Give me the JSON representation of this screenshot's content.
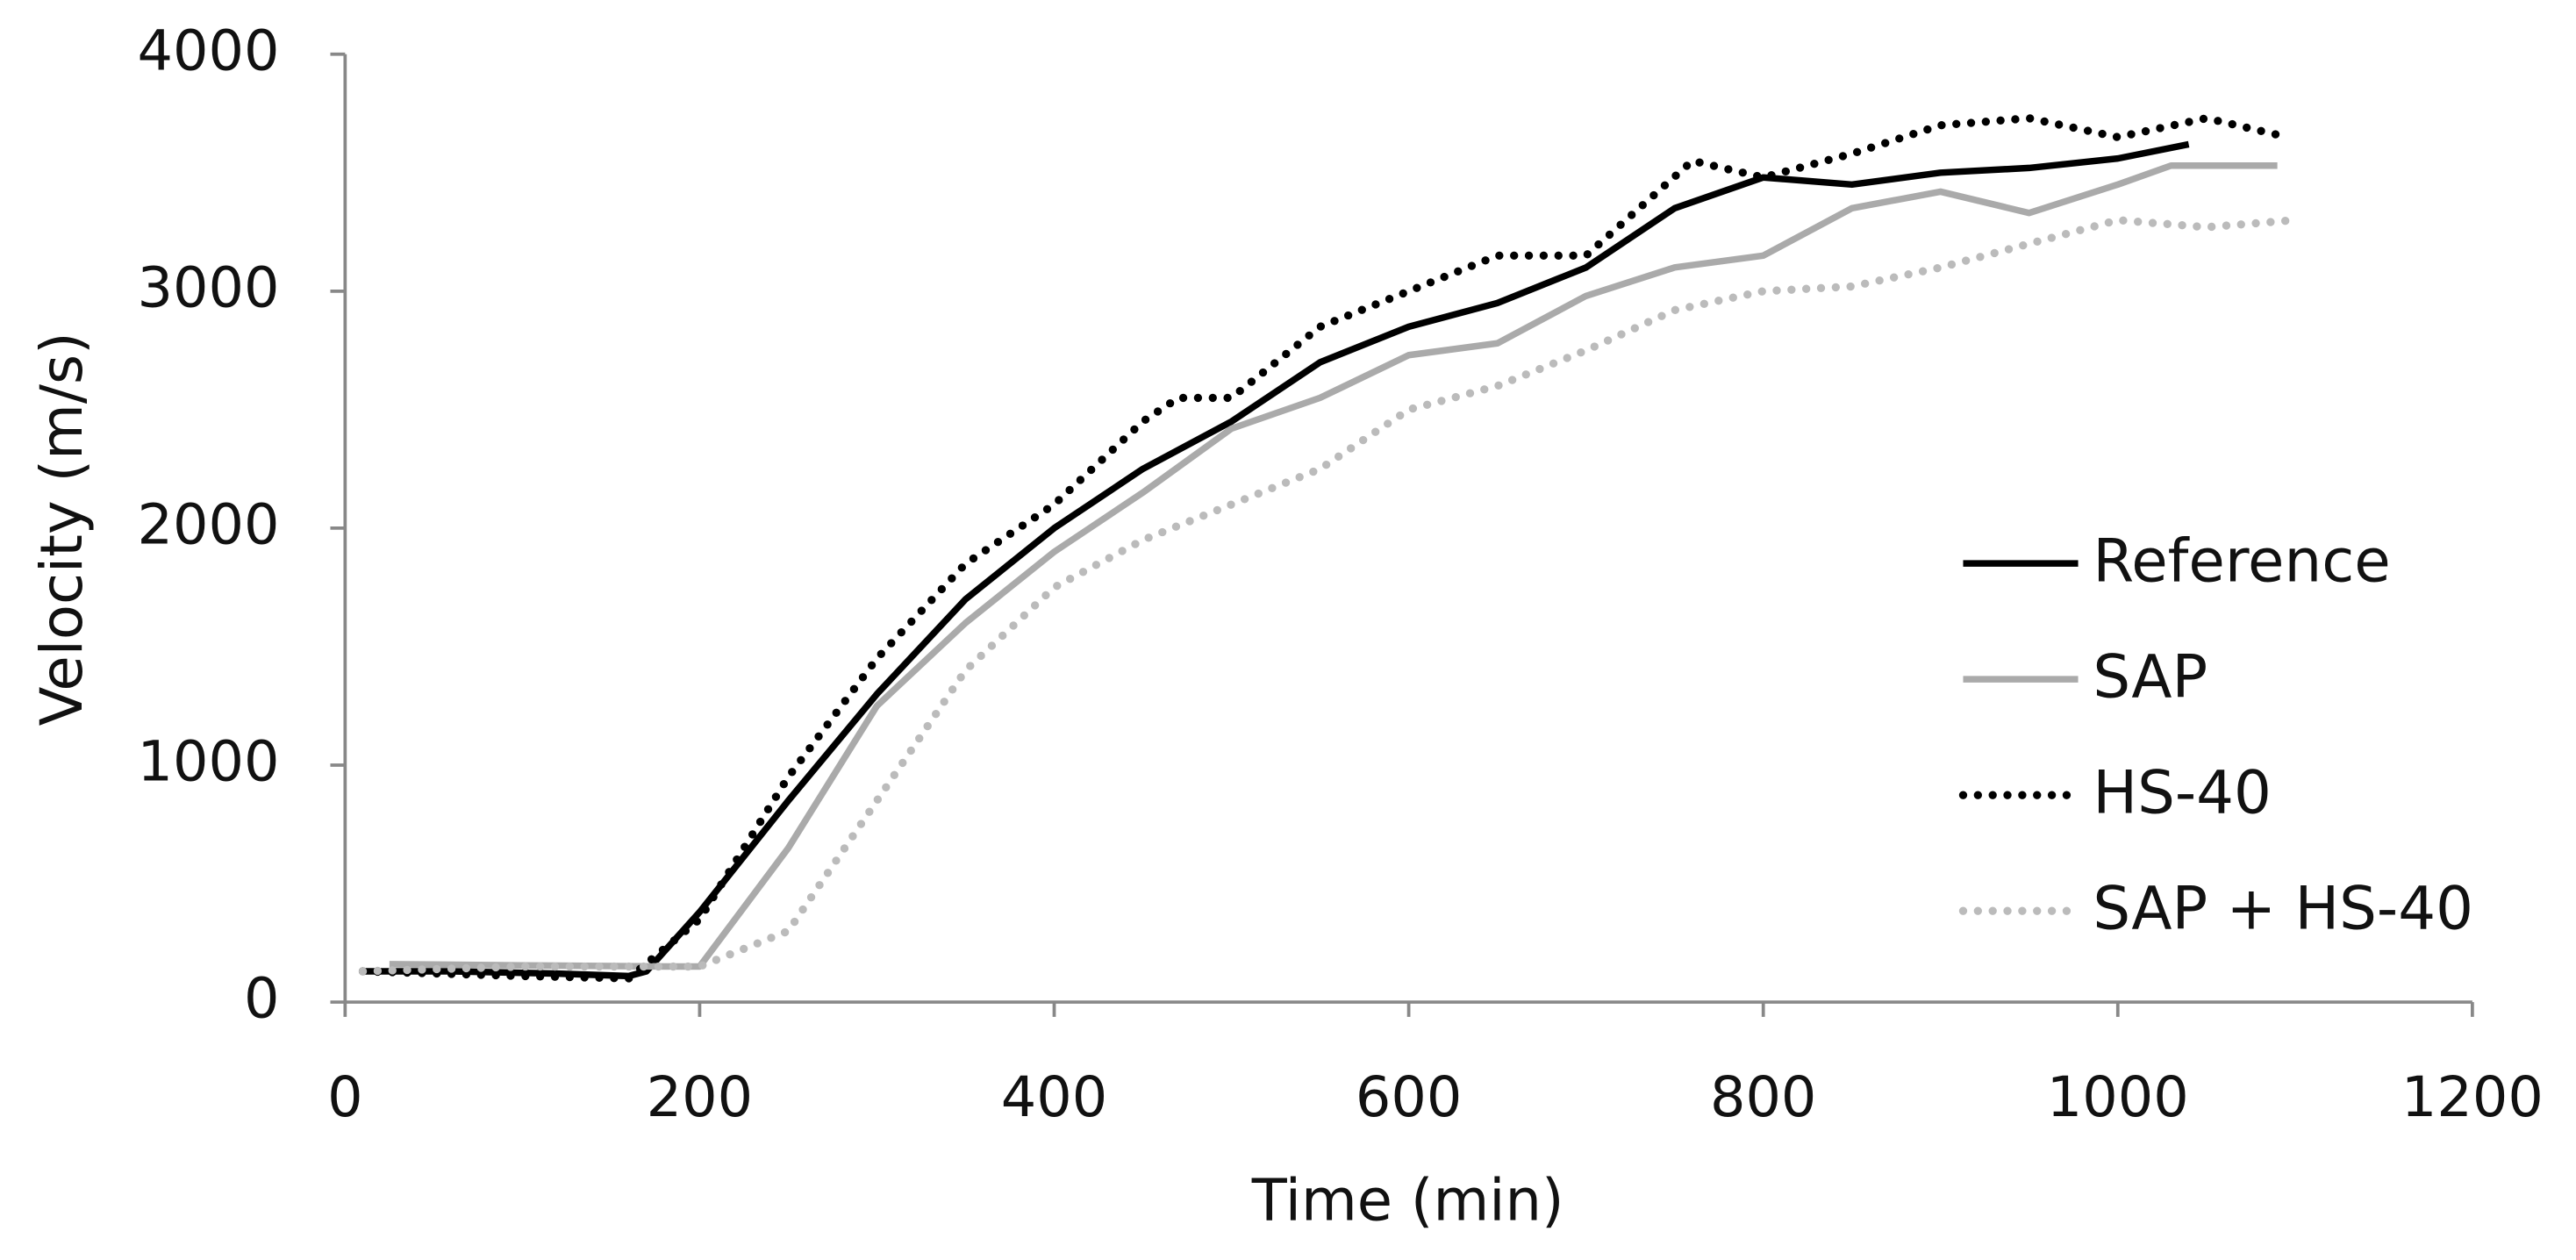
{
  "chart_data": {
    "type": "line",
    "x_label": "Time (min)",
    "y_label": "Velocity (m/s)",
    "xlim": [
      0,
      1200
    ],
    "xticks": [
      0,
      200,
      400,
      600,
      800,
      1000,
      1200
    ],
    "ylim": [
      0,
      4000
    ],
    "yticks": [
      0,
      1000,
      2000,
      3000,
      4000
    ],
    "grid": false,
    "legend": "right",
    "series": [
      {
        "name": "Reference",
        "color": "#000000",
        "style": "solid",
        "x": [
          10,
          60,
          120,
          160,
          170,
          200,
          250,
          300,
          350,
          400,
          450,
          500,
          550,
          600,
          650,
          700,
          750,
          800,
          850,
          900,
          950,
          1000,
          1040
        ],
        "values": [
          130,
          130,
          120,
          110,
          130,
          380,
          850,
          1300,
          1700,
          2000,
          2250,
          2450,
          2700,
          2850,
          2950,
          3100,
          3350,
          3480,
          3450,
          3500,
          3520,
          3560,
          3620
        ]
      },
      {
        "name": "SAP",
        "color": "#aaaaaa",
        "style": "solid",
        "x": [
          25,
          100,
          190,
          200,
          250,
          300,
          350,
          400,
          450,
          500,
          550,
          600,
          650,
          700,
          750,
          800,
          850,
          900,
          950,
          1000,
          1030,
          1090
        ],
        "values": [
          160,
          155,
          150,
          150,
          650,
          1250,
          1600,
          1900,
          2150,
          2420,
          2550,
          2730,
          2780,
          2980,
          3100,
          3150,
          3350,
          3420,
          3330,
          3450,
          3530,
          3530
        ]
      },
      {
        "name": "HS-40",
        "color": "#000000",
        "style": "dotted",
        "x": [
          10,
          100,
          160,
          200,
          250,
          300,
          350,
          400,
          450,
          470,
          500,
          550,
          600,
          650,
          700,
          760,
          800,
          850,
          900,
          950,
          1000,
          1050,
          1090
        ],
        "values": [
          130,
          110,
          100,
          350,
          950,
          1450,
          1850,
          2100,
          2450,
          2550,
          2550,
          2850,
          3000,
          3150,
          3150,
          3550,
          3480,
          3580,
          3700,
          3730,
          3650,
          3730,
          3660
        ]
      },
      {
        "name": "SAP + HS-40",
        "color": "#bbbbbb",
        "style": "dotted",
        "x": [
          10,
          100,
          200,
          250,
          300,
          350,
          400,
          450,
          500,
          550,
          600,
          650,
          700,
          750,
          800,
          850,
          900,
          950,
          1000,
          1050,
          1100
        ],
        "values": [
          130,
          150,
          150,
          300,
          850,
          1400,
          1750,
          1950,
          2100,
          2250,
          2500,
          2600,
          2750,
          2920,
          3000,
          3020,
          3100,
          3200,
          3300,
          3270,
          3300
        ]
      }
    ]
  }
}
